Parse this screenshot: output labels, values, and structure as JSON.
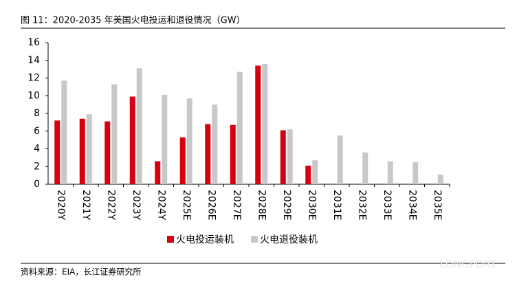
{
  "chart_data": {
    "type": "bar",
    "title": "图 11：2020-2035 年美国火电投运和退役情况（GW）",
    "categories": [
      "2020Y",
      "2021Y",
      "2022Y",
      "2023Y",
      "2024Y",
      "2025E",
      "2026E",
      "2027E",
      "2028E",
      "2029E",
      "2030E",
      "2031E",
      "2032E",
      "2033E",
      "2034E",
      "2035E"
    ],
    "series": [
      {
        "name": "火电投运装机",
        "color": "#d7000f",
        "values": [
          7.2,
          7.4,
          7.1,
          9.9,
          2.6,
          5.3,
          6.8,
          6.7,
          13.4,
          6.1,
          2.1,
          0,
          0,
          0,
          0,
          0
        ]
      },
      {
        "name": "火电退役装机",
        "color": "#c8c8c8",
        "values": [
          11.7,
          7.9,
          11.3,
          13.1,
          10.1,
          9.7,
          9.0,
          12.7,
          13.6,
          6.2,
          2.7,
          5.5,
          3.6,
          2.6,
          2.5,
          1.1
        ]
      }
    ],
    "ylim": [
      0,
      16
    ],
    "yticks": [
      0,
      2,
      4,
      6,
      8,
      10,
      12,
      14,
      16
    ],
    "grid": false,
    "source": "资料来源：EIA，长江证券研究所",
    "watermark": "LONGPORT"
  }
}
